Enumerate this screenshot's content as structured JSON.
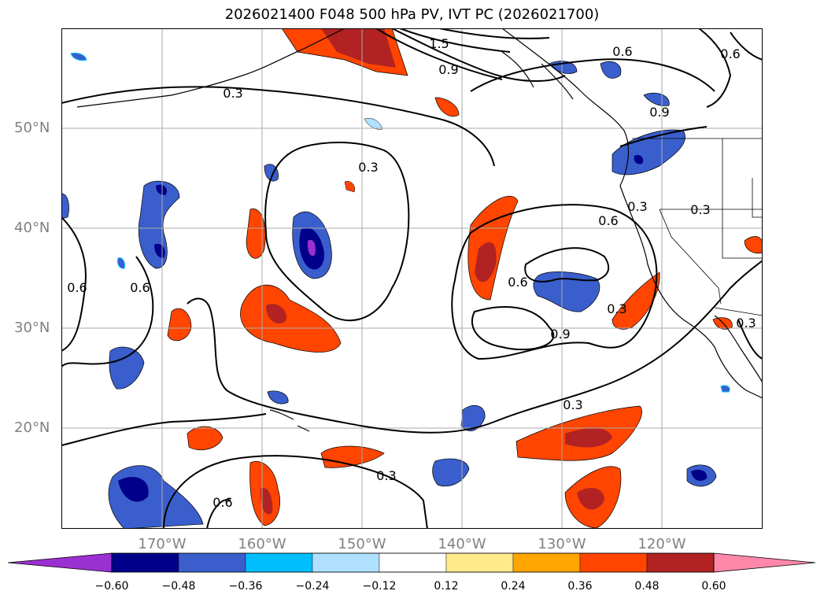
{
  "title": "2026021400 F048 500 hPa PV, IVT PC (2026021700)",
  "lat_labels": [
    "50°N",
    "40°N",
    "30°N",
    "20°N"
  ],
  "lon_labels": [
    "170°W",
    "160°W",
    "150°W",
    "140°W",
    "130°W",
    "120°W"
  ],
  "contour_labels": [
    "1.5",
    "0.9",
    "0.3",
    "0.6",
    "0.6",
    "0.3",
    "0.3",
    "0.6",
    "0.3",
    "0.6",
    "0.9",
    "0.3",
    "0.6",
    "0.6",
    "0.3",
    "0.3",
    "0.6",
    "0.9",
    "0.3"
  ],
  "colorbar": {
    "tick_labels": [
      "−0.60",
      "−0.48",
      "−0.36",
      "−0.24",
      "−0.12",
      "0.12",
      "0.24",
      "0.36",
      "0.48",
      "0.60"
    ],
    "colors": [
      "#9b30d0",
      "#00008b",
      "#3a5fcd",
      "#00bfff",
      "#b0e0ff",
      "#ffffff",
      "#ffeb8a",
      "#ffa500",
      "#ff4500",
      "#b22222",
      "#ff88aa"
    ]
  }
}
